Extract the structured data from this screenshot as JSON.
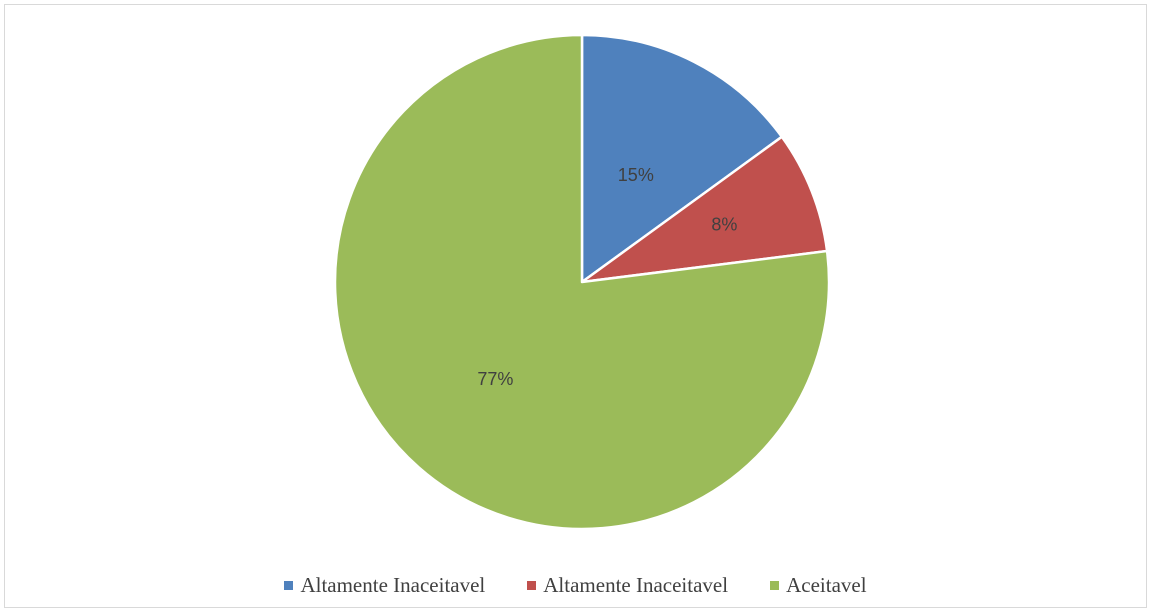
{
  "chart_data": {
    "type": "pie",
    "title": "",
    "categories": [
      "Altamente Inaceitavel",
      "Altamente Inaceitavel",
      "Aceitavel"
    ],
    "values": [
      15,
      8,
      77
    ],
    "value_labels": [
      "15%",
      "8%",
      "77%"
    ],
    "colors": [
      "#4f81bd",
      "#c0504d",
      "#9bbb59"
    ],
    "start_angle": "12 o'clock",
    "direction": "clockwise",
    "legend_position": "bottom"
  }
}
